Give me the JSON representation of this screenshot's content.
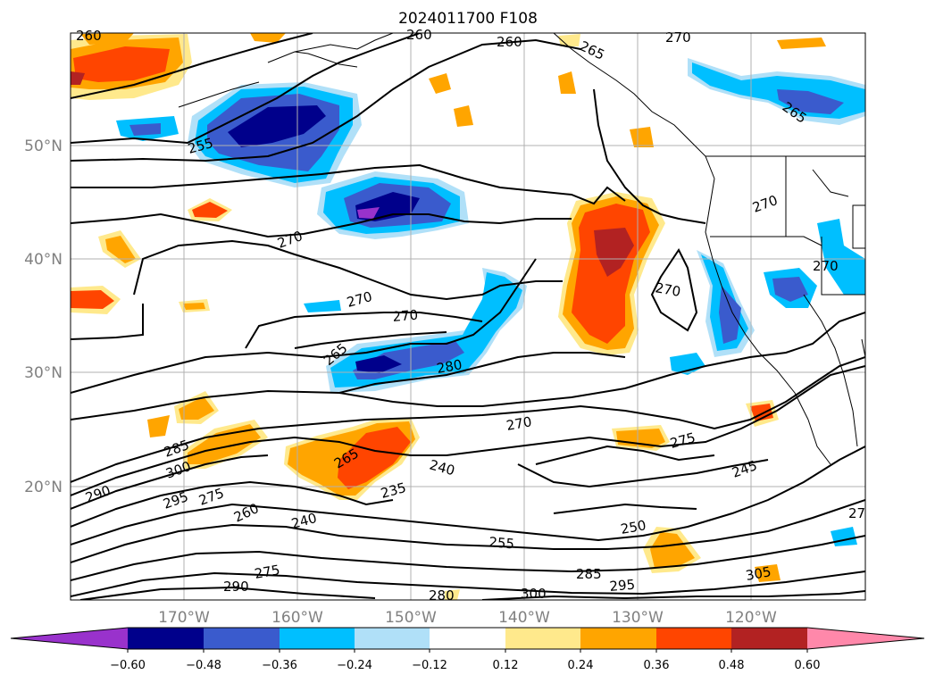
{
  "title": "2024011700 F108",
  "lat_ticks": [
    "20°N",
    "30°N",
    "40°N",
    "50°N"
  ],
  "lon_ticks": [
    "170°W",
    "160°W",
    "150°W",
    "140°W",
    "130°W",
    "120°W"
  ],
  "colorbar": {
    "ticks": [
      "−0.60",
      "−0.48",
      "−0.36",
      "−0.24",
      "−0.12",
      "0.12",
      "0.24",
      "0.36",
      "0.48",
      "0.60"
    ],
    "colors": [
      "#9932cc",
      "#00008b",
      "#3a5bcd",
      "#00bfff",
      "#b0e0f8",
      "#ffffff",
      "#ffe98c",
      "#ffa500",
      "#ff4500",
      "#b22222",
      "#ff88aa"
    ]
  },
  "contour_labels": [
    "260",
    "260",
    "260",
    "265",
    "270",
    "255",
    "265",
    "270",
    "270",
    "270",
    "270",
    "270",
    "270",
    "265",
    "280",
    "270",
    "275",
    "245",
    "285",
    "300",
    "290",
    "295",
    "275",
    "265",
    "240",
    "235",
    "260",
    "240",
    "255",
    "250",
    "285",
    "295",
    "300",
    "305",
    "275",
    "290",
    "280",
    "27"
  ]
}
